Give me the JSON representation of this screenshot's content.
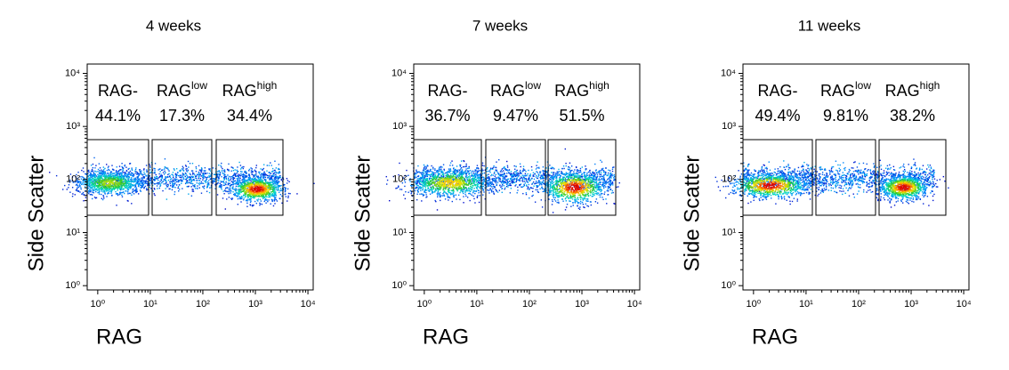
{
  "chart_data": [
    {
      "type": "scatter",
      "title": "4 weeks",
      "x_label": "RAG",
      "y_label": "Side Scatter",
      "log_x": true,
      "log_y": true,
      "xlim": [
        0.63,
        12600
      ],
      "ylim": [
        0.83,
        15000
      ],
      "xticks": [
        {
          "value": 1,
          "label": "10⁰"
        },
        {
          "value": 10,
          "label": "10¹"
        },
        {
          "value": 100,
          "label": "10²"
        },
        {
          "value": 1000,
          "label": "10³"
        },
        {
          "value": 10000,
          "label": "10⁴"
        }
      ],
      "yticks": [
        {
          "value": 1,
          "label": "10⁰"
        },
        {
          "value": 10,
          "label": "10¹"
        },
        {
          "value": 100,
          "label": "10²"
        },
        {
          "value": 1000,
          "label": "10³"
        },
        {
          "value": 10000,
          "label": "10⁴"
        }
      ],
      "gates": [
        {
          "name": "RAG-"
        },
        {
          "name": "RAG",
          "sup": "low"
        },
        {
          "name": "RAG",
          "sup": "high"
        }
      ],
      "values": [
        44.1,
        17.3,
        34.4
      ],
      "value_labels": [
        "44.1%",
        "17.3%",
        "34.4%"
      ]
    },
    {
      "type": "scatter",
      "title": "7 weeks",
      "x_label": "RAG",
      "y_label": "Side Scatter",
      "log_x": true,
      "log_y": true,
      "xlim": [
        0.63,
        12600
      ],
      "ylim": [
        0.83,
        15000
      ],
      "xticks": [
        {
          "value": 1,
          "label": "10⁰"
        },
        {
          "value": 10,
          "label": "10¹"
        },
        {
          "value": 100,
          "label": "10²"
        },
        {
          "value": 1000,
          "label": "10³"
        },
        {
          "value": 10000,
          "label": "10⁴"
        }
      ],
      "yticks": [
        {
          "value": 1,
          "label": "10⁰"
        },
        {
          "value": 10,
          "label": "10¹"
        },
        {
          "value": 100,
          "label": "10²"
        },
        {
          "value": 1000,
          "label": "10³"
        },
        {
          "value": 10000,
          "label": "10⁴"
        }
      ],
      "gates": [
        {
          "name": "RAG-"
        },
        {
          "name": "RAG",
          "sup": "low"
        },
        {
          "name": "RAG",
          "sup": "high"
        }
      ],
      "values": [
        36.7,
        9.47,
        51.5
      ],
      "value_labels": [
        "36.7%",
        "9.47%",
        "51.5%"
      ]
    },
    {
      "type": "scatter",
      "title": "11 weeks",
      "x_label": "RAG",
      "y_label": "Side Scatter",
      "log_x": true,
      "log_y": true,
      "xlim": [
        0.63,
        12600
      ],
      "ylim": [
        0.83,
        15000
      ],
      "xticks": [
        {
          "value": 1,
          "label": "10⁰"
        },
        {
          "value": 10,
          "label": "10¹"
        },
        {
          "value": 100,
          "label": "10²"
        },
        {
          "value": 1000,
          "label": "10³"
        },
        {
          "value": 10000,
          "label": "10⁴"
        }
      ],
      "yticks": [
        {
          "value": 1,
          "label": "10⁰"
        },
        {
          "value": 10,
          "label": "10¹"
        },
        {
          "value": 100,
          "label": "10²"
        },
        {
          "value": 1000,
          "label": "10³"
        },
        {
          "value": 10000,
          "label": "10⁴"
        }
      ],
      "gates": [
        {
          "name": "RAG-"
        },
        {
          "name": "RAG",
          "sup": "low"
        },
        {
          "name": "RAG",
          "sup": "high"
        }
      ],
      "values": [
        49.4,
        9.81,
        38.2
      ],
      "value_labels": [
        "49.4%",
        "9.81%",
        "38.2%"
      ]
    }
  ]
}
